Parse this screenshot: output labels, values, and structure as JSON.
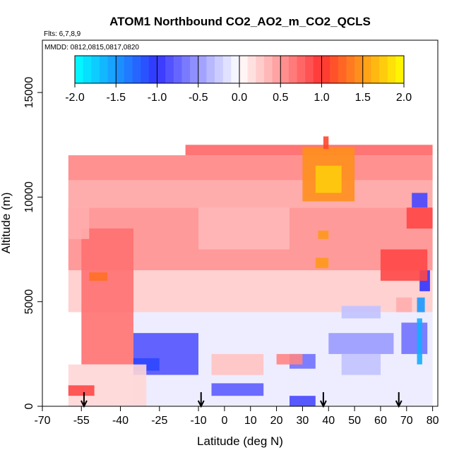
{
  "chart_data": {
    "type": "heatmap",
    "title": "ATOM1 Northbound CO2_AO2_m_CO2_QCLS",
    "flights_note": "Flts: 6,7,8,9",
    "dates_note": "MMDD: 0812,0815,0817,0820",
    "xlabel": "Latitude (deg N)",
    "ylabel": "Altitude (m)",
    "xlim": [
      -70,
      82
    ],
    "ylim": [
      0,
      17500
    ],
    "x_ticks": [
      -70,
      -55,
      -40,
      -25,
      -10,
      0,
      10,
      20,
      30,
      40,
      50,
      60,
      70,
      80
    ],
    "x_tick_labels": [
      "-70",
      "-55",
      "-40",
      "-25",
      "-10",
      "0",
      "10",
      "20",
      "30",
      "40",
      "50",
      "60",
      "70",
      "80"
    ],
    "y_ticks": [
      0,
      5000,
      10000,
      15000
    ],
    "y_tick_labels": [
      "0",
      "5000",
      "10000",
      "15000"
    ],
    "colorbar": {
      "range": [
        -2.0,
        2.0
      ],
      "ticks": [
        -2.0,
        -1.5,
        -1.0,
        -0.5,
        0.0,
        0.5,
        1.0,
        1.5,
        2.0
      ],
      "tick_labels": [
        "-2.0",
        "-1.5",
        "-1.0",
        "-0.5",
        "0.0",
        "0.5",
        "1.0",
        "1.5",
        "2.0"
      ],
      "colors": {
        "min": "#00ffff",
        "low": "#3333ff",
        "mid": "#ffffff",
        "high": "#ff3333",
        "max": "#ffff00"
      }
    },
    "profile_arrows_lat": [
      -54,
      -9,
      38,
      67
    ],
    "regions": [
      {
        "lat": [
          -60,
          80
        ],
        "alt": [
          10800,
          12000
        ],
        "value": 0.6
      },
      {
        "lat": [
          -15,
          80
        ],
        "alt": [
          12000,
          12500
        ],
        "value": 0.75
      },
      {
        "lat": [
          -60,
          80
        ],
        "alt": [
          9500,
          10800
        ],
        "value": 0.45
      },
      {
        "lat": [
          -60,
          80
        ],
        "alt": [
          6500,
          9500
        ],
        "value": 0.55
      },
      {
        "lat": [
          -60,
          80
        ],
        "alt": [
          4500,
          6500
        ],
        "value": 0.25
      },
      {
        "lat": [
          -55,
          -35
        ],
        "alt": [
          2000,
          8500
        ],
        "value": 0.7
      },
      {
        "lat": [
          30,
          50
        ],
        "alt": [
          9800,
          12400
        ],
        "value": 1.45
      },
      {
        "lat": [
          35,
          45
        ],
        "alt": [
          10200,
          11500
        ],
        "value": 1.75
      },
      {
        "lat": [
          38,
          40
        ],
        "alt": [
          12300,
          12900
        ],
        "value": 1.1
      },
      {
        "lat": [
          35,
          40
        ],
        "alt": [
          6600,
          7100
        ],
        "value": 1.5
      },
      {
        "lat": [
          36,
          40
        ],
        "alt": [
          8000,
          8400
        ],
        "value": 1.5
      },
      {
        "lat": [
          -52,
          -45
        ],
        "alt": [
          6000,
          6400
        ],
        "value": 1.3
      },
      {
        "lat": [
          -35,
          80
        ],
        "alt": [
          0,
          4500
        ],
        "value": -0.1
      },
      {
        "lat": [
          -35,
          -10
        ],
        "alt": [
          1500,
          3500
        ],
        "value": -0.85
      },
      {
        "lat": [
          -35,
          -25
        ],
        "alt": [
          1700,
          2300
        ],
        "value": -1.1
      },
      {
        "lat": [
          -5,
          15
        ],
        "alt": [
          500,
          1100
        ],
        "value": -0.8
      },
      {
        "lat": [
          25,
          35
        ],
        "alt": [
          0,
          500
        ],
        "value": -0.9
      },
      {
        "lat": [
          25,
          35
        ],
        "alt": [
          1800,
          2500
        ],
        "value": -0.7
      },
      {
        "lat": [
          40,
          65
        ],
        "alt": [
          2500,
          3500
        ],
        "value": -0.5
      },
      {
        "lat": [
          68,
          78
        ],
        "alt": [
          2500,
          4000
        ],
        "value": -0.7
      },
      {
        "lat": [
          74,
          76
        ],
        "alt": [
          2000,
          4200
        ],
        "value": -1.6
      },
      {
        "lat": [
          74,
          77
        ],
        "alt": [
          4500,
          5200
        ],
        "value": -1.5
      },
      {
        "lat": [
          72,
          78
        ],
        "alt": [
          9500,
          10200
        ],
        "value": -0.9
      },
      {
        "lat": [
          75,
          79
        ],
        "alt": [
          5500,
          6500
        ],
        "value": -1.0
      },
      {
        "lat": [
          -60,
          -30
        ],
        "alt": [
          0,
          2000
        ],
        "value": 0.2
      },
      {
        "lat": [
          -5,
          15
        ],
        "alt": [
          1500,
          2500
        ],
        "value": 0.3
      },
      {
        "lat": [
          20,
          30
        ],
        "alt": [
          2000,
          2500
        ],
        "value": 0.6
      },
      {
        "lat": [
          45,
          60
        ],
        "alt": [
          1500,
          2500
        ],
        "value": -0.3
      },
      {
        "lat": [
          60,
          78
        ],
        "alt": [
          6000,
          7500
        ],
        "value": 0.9
      },
      {
        "lat": [
          70,
          80
        ],
        "alt": [
          8500,
          9500
        ],
        "value": 0.9
      },
      {
        "lat": [
          -60,
          -52
        ],
        "alt": [
          8000,
          9500
        ],
        "value": 0.4
      },
      {
        "lat": [
          -60,
          -50
        ],
        "alt": [
          500,
          1000
        ],
        "value": 0.9
      },
      {
        "lat": [
          -10,
          25
        ],
        "alt": [
          7500,
          9500
        ],
        "value": 0.35
      },
      {
        "lat": [
          45,
          60
        ],
        "alt": [
          4200,
          4800
        ],
        "value": -0.3
      },
      {
        "lat": [
          66,
          72
        ],
        "alt": [
          4500,
          5200
        ],
        "value": 0.4
      }
    ]
  }
}
